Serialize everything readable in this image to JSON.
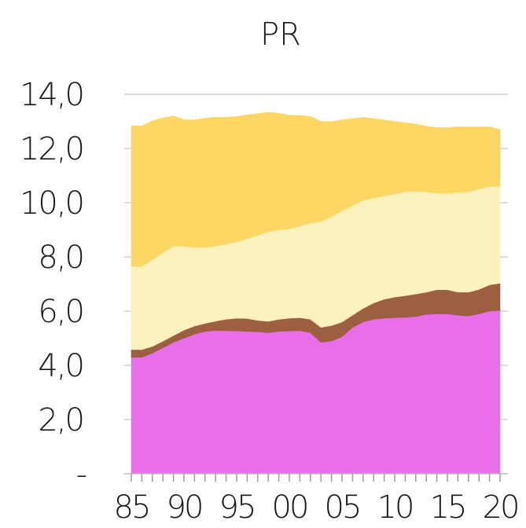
{
  "chart_data": {
    "type": "area",
    "stacked": true,
    "title": "PR",
    "xlabel": "",
    "ylabel": "",
    "ylim": [
      0,
      14
    ],
    "yticks": [
      0,
      2,
      4,
      6,
      8,
      10,
      12,
      14
    ],
    "ytick_labels": [
      "-",
      "2,0",
      "4,0",
      "6,0",
      "8,0",
      "10,0",
      "12,0",
      "14,0"
    ],
    "xtick_labels": [
      "85",
      "90",
      "95",
      "00",
      "05",
      "10",
      "15",
      "20"
    ],
    "grid": true,
    "legend": "none",
    "x": [
      1985,
      1986,
      1987,
      1988,
      1989,
      1990,
      1991,
      1992,
      1993,
      1994,
      1995,
      1996,
      1997,
      1998,
      1999,
      2000,
      2001,
      2002,
      2003,
      2004,
      2005,
      2006,
      2007,
      2008,
      2009,
      2010,
      2011,
      2012,
      2013,
      2014,
      2015,
      2016,
      2017,
      2018,
      2019,
      2020
    ],
    "series": [
      {
        "color": "#e96fea",
        "values": [
          4.3,
          4.3,
          4.45,
          4.65,
          4.85,
          5.0,
          5.15,
          5.25,
          5.28,
          5.28,
          5.27,
          5.25,
          5.24,
          5.2,
          5.25,
          5.27,
          5.28,
          5.2,
          4.85,
          4.9,
          5.05,
          5.4,
          5.6,
          5.7,
          5.74,
          5.76,
          5.77,
          5.8,
          5.88,
          5.9,
          5.9,
          5.85,
          5.82,
          5.9,
          6.0,
          6.02
        ]
      },
      {
        "color": "#9c5f42",
        "values": [
          0.28,
          0.28,
          0.25,
          0.24,
          0.25,
          0.3,
          0.3,
          0.3,
          0.35,
          0.42,
          0.47,
          0.48,
          0.42,
          0.42,
          0.45,
          0.47,
          0.48,
          0.5,
          0.55,
          0.57,
          0.55,
          0.45,
          0.5,
          0.6,
          0.7,
          0.76,
          0.8,
          0.83,
          0.82,
          0.89,
          0.89,
          0.85,
          0.88,
          0.9,
          0.97,
          1.01
        ]
      },
      {
        "color": "#fdf1bd",
        "values": [
          3.07,
          3.07,
          3.2,
          3.27,
          3.3,
          3.1,
          2.9,
          2.8,
          2.77,
          2.77,
          2.82,
          2.95,
          3.14,
          3.3,
          3.3,
          3.3,
          3.38,
          3.55,
          3.9,
          4.02,
          4.1,
          4.05,
          3.99,
          3.88,
          3.81,
          3.8,
          3.83,
          3.8,
          3.7,
          3.56,
          3.56,
          3.68,
          3.7,
          3.7,
          3.63,
          3.57
        ]
      },
      {
        "color": "#fdd663",
        "values": [
          5.18,
          5.18,
          5.12,
          4.97,
          4.8,
          4.66,
          4.7,
          4.77,
          4.75,
          4.68,
          4.62,
          4.56,
          4.49,
          4.42,
          4.3,
          4.19,
          4.08,
          3.93,
          3.7,
          3.5,
          3.35,
          3.2,
          3.06,
          2.92,
          2.8,
          2.68,
          2.55,
          2.47,
          2.42,
          2.42,
          2.42,
          2.42,
          2.4,
          2.3,
          2.2,
          2.1
        ]
      }
    ]
  }
}
